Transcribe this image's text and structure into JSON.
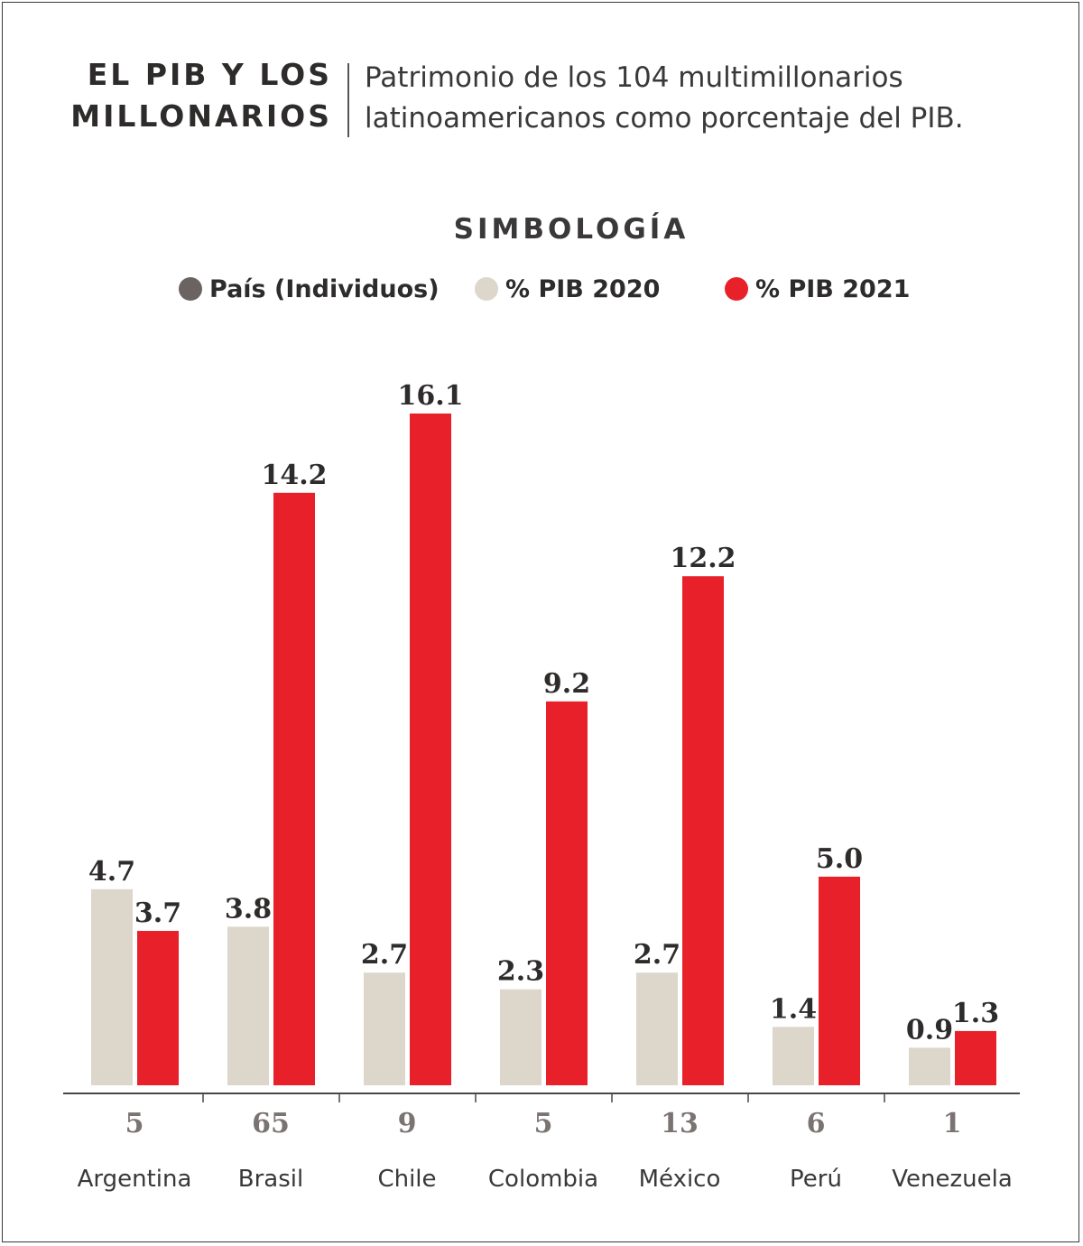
{
  "header": {
    "title_line1": "EL PIB Y LOS",
    "title_line2": "MILLONARIOS",
    "subtitle_line1": "Patrimonio de los 104 multimillonarios",
    "subtitle_line2": "latinoamericanos como porcentaje del PIB."
  },
  "legend": {
    "title": "SIMBOLOGÍA",
    "items": [
      {
        "label": "País (Individuos)",
        "color": "#6b6362"
      },
      {
        "label": "% PIB 2020",
        "color": "#dcd6cb"
      },
      {
        "label": "% PIB 2021",
        "color": "#e8202a"
      }
    ]
  },
  "chart_data": {
    "type": "bar",
    "title": "EL PIB Y LOS MILLONARIOS",
    "subtitle": "Patrimonio de los 104 multimillonarios latinoamericanos como porcentaje del PIB.",
    "categories": [
      "Argentina",
      "Brasil",
      "Chile",
      "Colombia",
      "México",
      "Perú",
      "Venezuela"
    ],
    "individuals": [
      "5",
      "65",
      "9",
      "5",
      "13",
      "6",
      "1"
    ],
    "series": [
      {
        "name": "% PIB 2020",
        "color": "#dcd6cb",
        "values": [
          4.7,
          3.8,
          2.7,
          2.3,
          2.7,
          1.4,
          0.9
        ],
        "labels": [
          "4.7",
          "3.8",
          "2.7",
          "2.3",
          "2.7",
          "1.4",
          "0.9"
        ]
      },
      {
        "name": "% PIB 2021",
        "color": "#e8202a",
        "values": [
          3.7,
          14.2,
          16.1,
          9.2,
          12.2,
          5.0,
          1.3
        ],
        "labels": [
          "3.7",
          "14.2",
          "16.1",
          "9.2",
          "12.2",
          "5.0",
          "1.3"
        ]
      }
    ],
    "ylim": [
      0,
      16.1
    ],
    "grid": false,
    "legend_position": "top-center"
  }
}
